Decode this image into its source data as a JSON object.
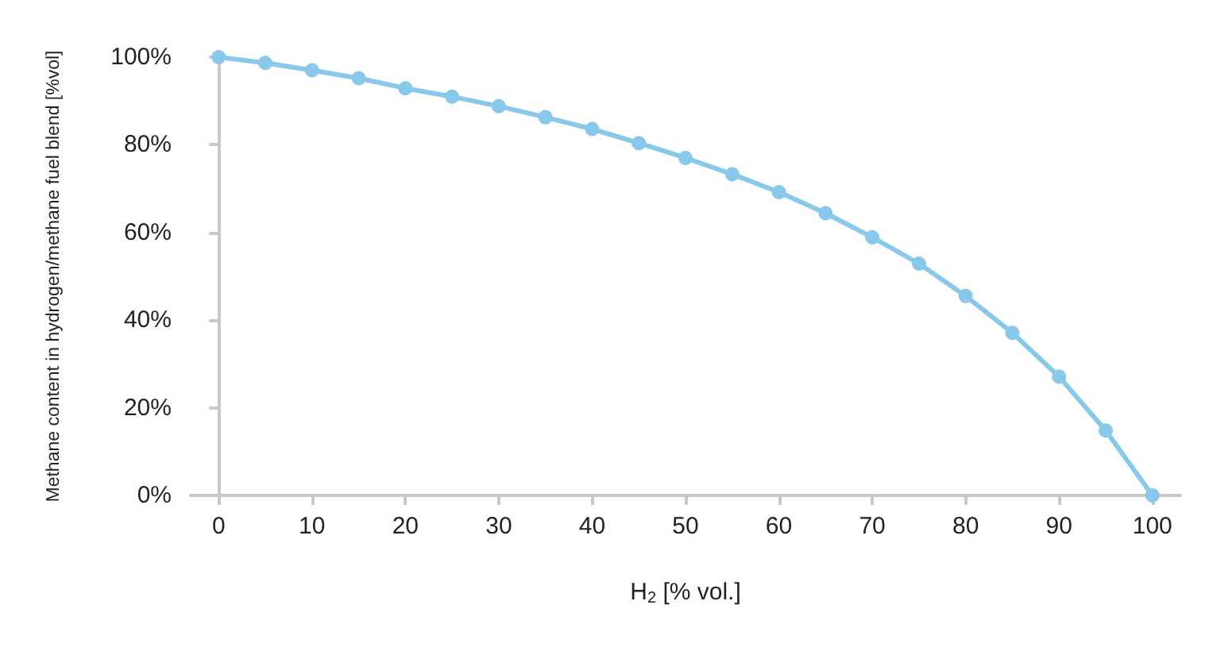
{
  "chart_data": {
    "type": "line",
    "xlabel": "H$_{2}$ [% vol.]",
    "ylabel": "Methane content in hydrogen/methane fuel blend [%vol]",
    "x": [
      0,
      5,
      10,
      15,
      20,
      25,
      30,
      35,
      40,
      45,
      50,
      55,
      60,
      65,
      70,
      75,
      80,
      85,
      90,
      95,
      100
    ],
    "series": [
      {
        "color": "#88c8ea",
        "values": [
          100,
          98.7,
          97,
          95.2,
          92.9,
          91,
          88.8,
          86.3,
          83.6,
          80.4,
          77,
          73.3,
          69.2,
          64.4,
          58.9,
          52.9,
          45.5,
          37.1,
          27.1,
          14.8,
          0
        ]
      }
    ],
    "xlim": [
      -3,
      103
    ],
    "xticks": [
      0,
      10,
      20,
      30,
      40,
      50,
      60,
      70,
      80,
      90,
      100
    ],
    "ylim": [
      0,
      100
    ],
    "yticks": [
      {
        "value": 0,
        "label": "0%"
      },
      {
        "value": 20,
        "label": "20%"
      },
      {
        "value": 40,
        "label": "40%"
      },
      {
        "value": 60,
        "label": "60%"
      },
      {
        "value": 80,
        "label": "80%"
      },
      {
        "value": 100,
        "label": "100%"
      }
    ],
    "grid": false,
    "marker": "circle",
    "line_style": "solid"
  }
}
